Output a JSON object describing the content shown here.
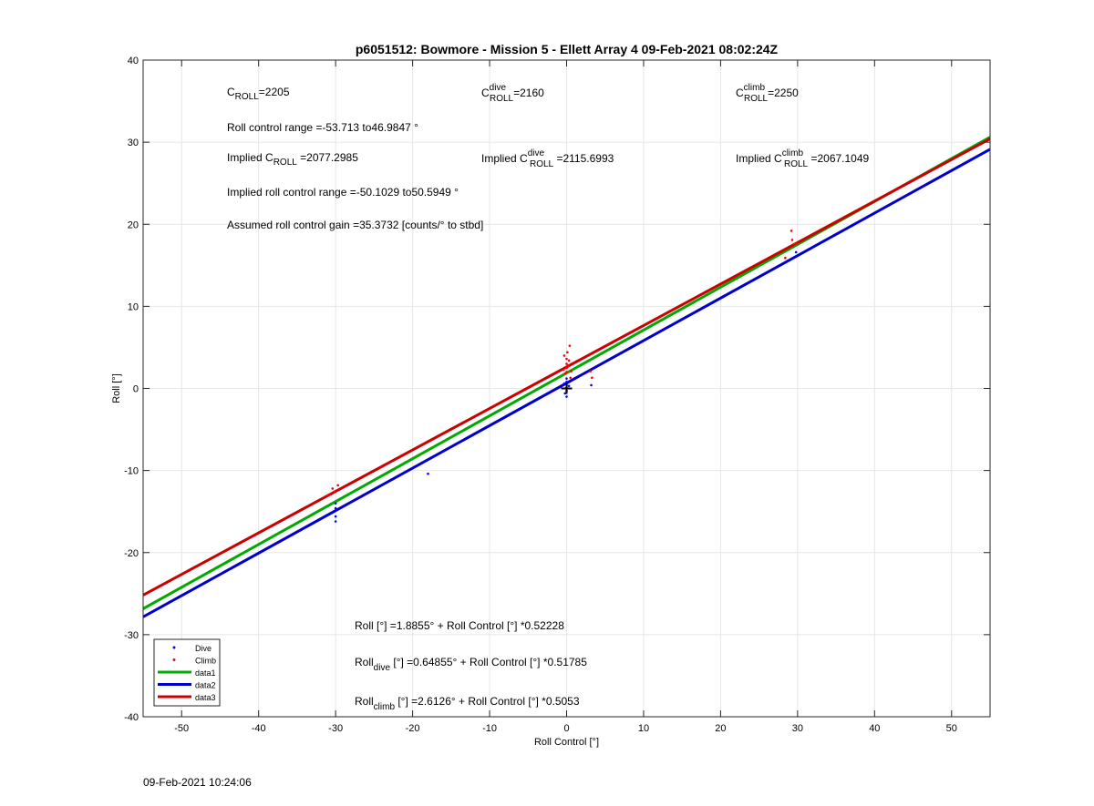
{
  "timestamp": "09-Feb-2021 10:24:06",
  "chart_data": {
    "type": "scatter",
    "title": "p6051512: Bowmore - Mission 5 - Ellett Array 4 09-Feb-2021 08:02:24Z",
    "xlabel": "Roll Control [°]",
    "ylabel": "Roll [°]",
    "xlim": [
      -55,
      55
    ],
    "ylim": [
      -40,
      40
    ],
    "xticks": [
      -50,
      -40,
      -30,
      -20,
      -10,
      0,
      10,
      20,
      30,
      40,
      50
    ],
    "yticks": [
      -40,
      -30,
      -20,
      -10,
      0,
      10,
      20,
      30,
      40
    ],
    "grid": true,
    "legend_position": "bottom-left",
    "colors": {
      "dive": "#0000ff",
      "climb": "#ff0000",
      "data1": "#00aa00",
      "data2": "#0000cc",
      "data3": "#cc0000",
      "marker": "#000000"
    },
    "legend": [
      {
        "label": "Dive",
        "kind": "dot",
        "color": "#0000ff"
      },
      {
        "label": "Climb",
        "kind": "dot",
        "color": "#ff0000"
      },
      {
        "label": "data1",
        "kind": "line",
        "color": "#00aa00"
      },
      {
        "label": "data2",
        "kind": "line",
        "color": "#0000cc"
      },
      {
        "label": "data3",
        "kind": "line",
        "color": "#cc0000"
      }
    ],
    "lines": [
      {
        "name": "data1",
        "intercept": 1.8855,
        "slope": 0.52228,
        "color": "#00aa00"
      },
      {
        "name": "data2",
        "intercept": 0.64855,
        "slope": 0.51785,
        "color": "#0000cc"
      },
      {
        "name": "data3",
        "intercept": 2.6126,
        "slope": 0.5053,
        "color": "#cc0000"
      }
    ],
    "dive_points": [
      [
        -30,
        -14
      ],
      [
        -30,
        -14.6
      ],
      [
        -30,
        -15.6
      ],
      [
        -30,
        -16.2
      ],
      [
        -18,
        -10.4
      ],
      [
        0,
        1.2
      ],
      [
        0,
        0.8
      ],
      [
        0,
        0.5
      ],
      [
        0,
        0.1
      ],
      [
        0,
        -0.3
      ],
      [
        0,
        -1
      ],
      [
        -0.3,
        0.6
      ],
      [
        0.3,
        0.3
      ],
      [
        -0.2,
        -0.6
      ],
      [
        3.2,
        0.4
      ],
      [
        29.8,
        16.6
      ]
    ],
    "climb_points": [
      [
        -30.4,
        -12.2
      ],
      [
        -30.2,
        -12.6
      ],
      [
        -30.6,
        -12.9
      ],
      [
        -31,
        -13
      ],
      [
        -29.7,
        -11.8
      ],
      [
        0,
        2
      ],
      [
        0,
        2.5
      ],
      [
        0,
        3
      ],
      [
        0,
        3.6
      ],
      [
        -0.3,
        4
      ],
      [
        0.4,
        5.2
      ],
      [
        0.2,
        2.8
      ],
      [
        -0.2,
        1.8
      ],
      [
        0.5,
        1.3
      ],
      [
        0.3,
        3.4
      ],
      [
        -0.4,
        2.3
      ],
      [
        0.6,
        2.1
      ],
      [
        0.1,
        4.4
      ],
      [
        3.3,
        1.3
      ],
      [
        3.1,
        2.1
      ],
      [
        29.2,
        19.2
      ],
      [
        29.3,
        18.1
      ],
      [
        29.6,
        17.6
      ],
      [
        28.4,
        15.9
      ],
      [
        29.9,
        17.7
      ]
    ],
    "origin_marker": [
      0,
      0
    ],
    "annotations": {
      "c_roll": {
        "base": "C",
        "sub": "ROLL",
        "value": "=2205"
      },
      "c_roll_dive": {
        "base": "C",
        "sub": "ROLL",
        "sup": "dive",
        "value": "=2160"
      },
      "c_roll_climb": {
        "base": "C",
        "sub": "ROLL",
        "sup": "climb",
        "value": "=2250"
      },
      "roll_control_range": "Roll control range =-53.713 to46.9847 °",
      "implied_c_roll": {
        "prefix": "Implied ",
        "base": "C",
        "sub": "ROLL",
        "value": " =2077.2985"
      },
      "implied_c_roll_dive": {
        "prefix": "Implied ",
        "base": "C",
        "sub": "ROLL",
        "sup": "dive",
        "value": " =2115.6993"
      },
      "implied_c_roll_climb": {
        "prefix": "Implied ",
        "base": "C",
        "sub": "ROLL",
        "sup": "climb",
        "value": " =2067.1049"
      },
      "implied_range": "Implied roll control range =-50.1029 to50.5949 °",
      "gain": "Assumed roll control gain =35.3732 [counts/° to stbd]",
      "eq_all": "Roll [°] =1.8855° + Roll Control [°] *0.52228",
      "eq_dive": {
        "base": "Roll",
        "sub": "dive",
        "rest": " [°] =0.64855° + Roll Control [°] *0.51785"
      },
      "eq_climb": {
        "base": "Roll",
        "sub": "climb",
        "rest": " [°] =2.6126° + Roll Control [°] *0.5053"
      }
    }
  }
}
